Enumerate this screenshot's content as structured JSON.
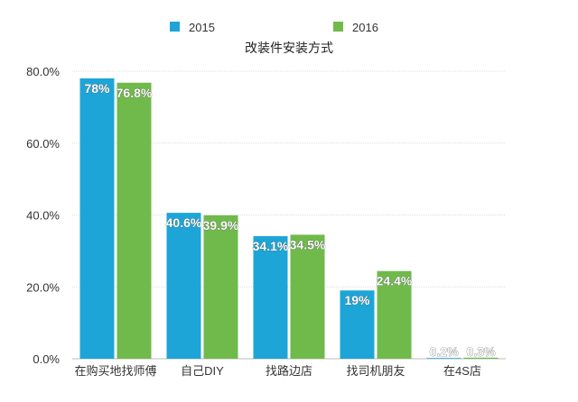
{
  "chart_data": {
    "type": "bar",
    "title": "改装件安装方式",
    "categories": [
      "在购买地找师傅",
      "自己DIY",
      "找路边店",
      "找司机朋友",
      "在4S店"
    ],
    "series": [
      {
        "name": "2015",
        "color": "#1ea5d7",
        "values": [
          78,
          40.6,
          34.1,
          19,
          0.2
        ],
        "labels": [
          "78%",
          "40.6%",
          "34.1%",
          "19%",
          "0.2%"
        ]
      },
      {
        "name": "2016",
        "color": "#6fba4b",
        "values": [
          76.8,
          39.9,
          34.5,
          24.4,
          0.3
        ],
        "labels": [
          "76.8%",
          "39.9%",
          "34.5%",
          "24.4%",
          "0.3%"
        ]
      }
    ],
    "ylim": [
      0,
      80
    ],
    "yticks": [
      "0.0%",
      "20.0%",
      "40.0%",
      "60.0%",
      "80.0%"
    ],
    "ytick_values": [
      0,
      20,
      40,
      60,
      80
    ],
    "xlabel": "",
    "ylabel": "",
    "grid": true,
    "legend": "top"
  }
}
